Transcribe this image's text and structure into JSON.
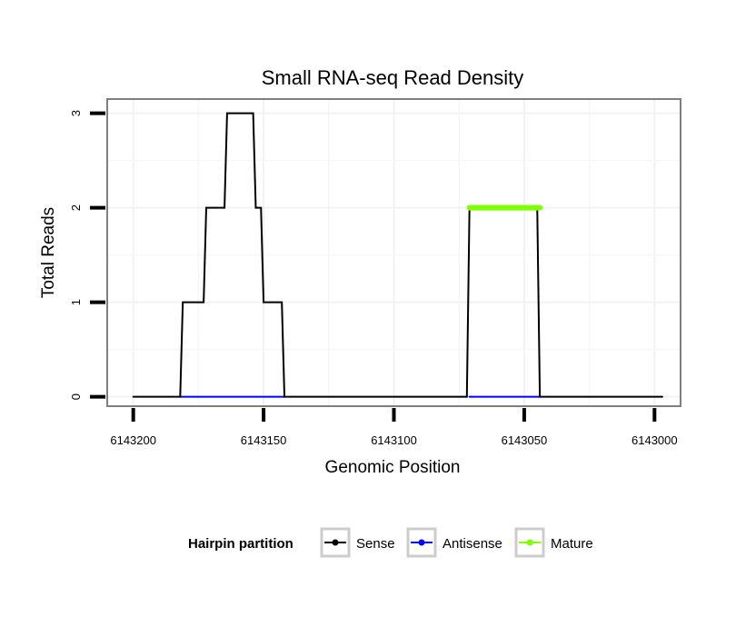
{
  "chart_data": {
    "type": "line",
    "title": "Small RNA-seq Read Density",
    "xlabel": "Genomic Position",
    "ylabel": "Total Reads",
    "xlim": [
      6143210,
      6142990
    ],
    "ylim": [
      -0.1,
      3.15
    ],
    "x_reversed": true,
    "x_ticks": [
      6143200,
      6143150,
      6143100,
      6143050,
      6143000
    ],
    "x_tick_labels": [
      "6143200",
      "6143150",
      "6143100",
      "6143050",
      "6143000"
    ],
    "y_ticks": [
      0,
      1,
      2,
      3
    ],
    "y_tick_labels": [
      "0",
      "1",
      "2",
      "3"
    ],
    "grid": true,
    "legend": {
      "title": "Hairpin partition",
      "position": "bottom",
      "entries": [
        {
          "label": "Sense",
          "color": "#000000"
        },
        {
          "label": "Antisense",
          "color": "#0000ff"
        },
        {
          "label": "Mature",
          "color": "#7fff00"
        }
      ]
    },
    "series": [
      {
        "name": "Sense",
        "color": "#000000",
        "x": [
          6143200,
          6143182,
          6143181,
          6143173,
          6143172,
          6143165,
          6143164,
          6143154,
          6143153,
          6143151,
          6143150,
          6143143,
          6143142,
          6143072,
          6143071,
          6143045,
          6143044,
          6142997
        ],
        "y": [
          0,
          0,
          1,
          1,
          2,
          2,
          3,
          3,
          2,
          2,
          1,
          1,
          0,
          0,
          2,
          2,
          0,
          0
        ]
      },
      {
        "name": "Antisense",
        "color": "#0000ff",
        "x": [
          6143182,
          6143142,
          6143071,
          6143044
        ],
        "y": [
          0,
          0,
          0,
          0
        ],
        "segments": [
          [
            0,
            1
          ],
          [
            2,
            3
          ]
        ]
      },
      {
        "name": "Mature",
        "color": "#7fff00",
        "x": [
          6143071,
          6143044
        ],
        "y": [
          2,
          2
        ]
      }
    ]
  }
}
